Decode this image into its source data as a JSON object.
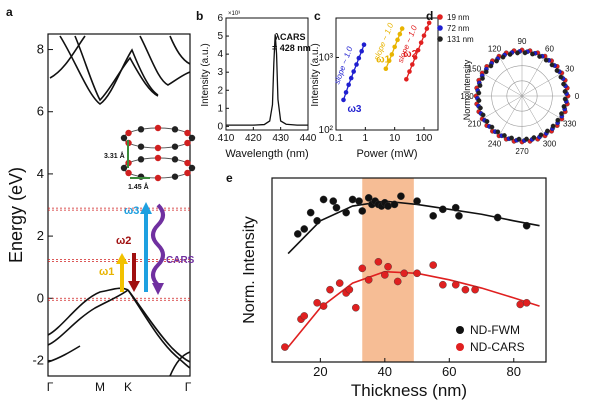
{
  "panels": {
    "a": {
      "label": "a",
      "chart_data": {
        "type": "line",
        "ylabel": "Energy (eV)",
        "ylim": [
          -2.5,
          8.5
        ],
        "yticks": [
          "-2",
          "0",
          "2",
          "4",
          "6",
          "8"
        ],
        "kpoints": [
          "Γ",
          "M",
          "K",
          "Γ"
        ],
        "dashed_levels_ev": [
          0,
          1.25,
          2.9
        ],
        "arrows": [
          {
            "label": "ω1",
            "color": "#f2c200"
          },
          {
            "label": "ω2",
            "color": "#a01010"
          },
          {
            "label": "ω3",
            "color": "#1ea0e0"
          },
          {
            "label": "CARS",
            "color": "#7030a0"
          }
        ],
        "structure_labels": {
          "interlayer": "3.31 Å",
          "bond": "1.45 Å"
        }
      }
    },
    "b": {
      "label": "b",
      "chart_data": {
        "type": "line",
        "xlabel": "Wavelength (nm)",
        "ylabel": "Intensity (a.u.)",
        "xlim": [
          410,
          440
        ],
        "ylim": [
          -0.2,
          6
        ],
        "xticks": [
          "410",
          "420",
          "430",
          "440"
        ],
        "yticks": [
          "0",
          "1",
          "2",
          "3",
          "4",
          "5",
          "6"
        ],
        "exponent": "×10³",
        "annotation": {
          "line1": "λCARS",
          "line2": "= 428 nm"
        },
        "x": [
          410,
          420,
          424,
          426,
          427,
          427.5,
          428,
          428.5,
          429,
          430,
          432,
          436,
          440
        ],
        "y": [
          0.07,
          0.07,
          0.1,
          0.3,
          1.2,
          3.5,
          5.1,
          4.0,
          1.5,
          0.3,
          0.12,
          0.07,
          0.07
        ]
      }
    },
    "c": {
      "label": "c",
      "chart_data": {
        "type": "scatter",
        "xlabel": "Power (mW)",
        "ylabel": "Intensity (a.u.)",
        "xscale": "log",
        "yscale": "log",
        "xticks": [
          "0.1",
          "1",
          "10",
          "100"
        ],
        "yticks": [
          "10²",
          "10³"
        ],
        "series": [
          {
            "name": "ω3",
            "slope_label": "slope ~ 1.0",
            "color": "#1f1fd0",
            "x": [
              0.18,
              0.22,
              0.27,
              0.33,
              0.4,
              0.5,
              0.6,
              0.75,
              0.9
            ],
            "y": [
              260,
              330,
              420,
              520,
              640,
              800,
              980,
              1220,
              1500
            ]
          },
          {
            "name": "ω1",
            "slope_label": "slope ~ 1.0",
            "color": "#e8b400",
            "x": [
              5,
              6.5,
              8,
              10,
              12.5,
              15,
              18
            ],
            "y": [
              700,
              900,
              1100,
              1400,
              1750,
              2100,
              2500
            ]
          },
          {
            "name": "ω2",
            "slope_label": "slope ~ 1.0",
            "color": "#e02020",
            "x": [
              25,
              32,
              40,
              50,
              63,
              80,
              100,
              125,
              150
            ],
            "y": [
              500,
              640,
              800,
              1000,
              1260,
              1600,
              2000,
              2500,
              3000
            ]
          }
        ]
      }
    },
    "d": {
      "label": "d",
      "chart_data": {
        "type": "polar",
        "ylabel": "Norm. Intensity",
        "angle_labels": [
          "0",
          "30",
          "60",
          "90",
          "120",
          "150",
          "180",
          "210",
          "240",
          "270",
          "300",
          "330"
        ],
        "legend": [
          "19 nm",
          "72 nm",
          "131 nm"
        ],
        "colors": [
          "#e02020",
          "#1f1fd0",
          "#222222"
        ],
        "radius_norm": [
          1.0,
          0.97,
          0.94
        ]
      }
    },
    "e": {
      "label": "e",
      "chart_data": {
        "type": "scatter",
        "xlabel": "Thickness (nm)",
        "ylabel": "Norm. Intensity",
        "xlim": [
          5,
          90
        ],
        "ylim": [
          0,
          1
        ],
        "xticks": [
          "20",
          "40",
          "60",
          "80"
        ],
        "shaded_range": [
          33,
          49
        ],
        "series": [
          {
            "name": "ND-FWM",
            "color": "#111111",
            "x": [
              13,
              15,
              17,
              19,
              21,
              24,
              25,
              28,
              30,
              32,
              33,
              35,
              36,
              37,
              38,
              39,
              40,
              41,
              43,
              45,
              50,
              55,
              58,
              62,
              63,
              75,
              84
            ],
            "y": [
              0.72,
              0.75,
              0.85,
              0.8,
              0.93,
              0.92,
              0.88,
              0.85,
              0.93,
              0.92,
              0.86,
              0.94,
              0.9,
              0.92,
              0.9,
              0.89,
              0.91,
              0.89,
              0.9,
              0.95,
              0.92,
              0.83,
              0.87,
              0.88,
              0.83,
              0.82,
              0.77
            ]
          },
          {
            "name": "ND-CARS",
            "color": "#e02020",
            "x": [
              9,
              14,
              15,
              19,
              21,
              23,
              26,
              28,
              29,
              31,
              33,
              35,
              38,
              40,
              41,
              44,
              46,
              50,
              55,
              58,
              62,
              65,
              68,
              82,
              84
            ],
            "y": [
              0.03,
              0.2,
              0.22,
              0.3,
              0.28,
              0.38,
              0.42,
              0.36,
              0.38,
              0.27,
              0.51,
              0.44,
              0.55,
              0.47,
              0.52,
              0.43,
              0.48,
              0.48,
              0.53,
              0.41,
              0.41,
              0.38,
              0.38,
              0.29,
              0.3
            ]
          }
        ],
        "fit_lines": [
          {
            "color": "#111111",
            "x": [
              10,
              20,
              30,
              40,
              50,
              60,
              70,
              80,
              88
            ],
            "y": [
              0.6,
              0.8,
              0.89,
              0.92,
              0.9,
              0.87,
              0.84,
              0.8,
              0.77
            ]
          },
          {
            "color": "#e02020",
            "x": [
              10,
              20,
              30,
              40,
              50,
              60,
              70,
              80,
              88
            ],
            "y": [
              0.03,
              0.27,
              0.42,
              0.49,
              0.48,
              0.44,
              0.39,
              0.33,
              0.28
            ]
          }
        ]
      }
    }
  }
}
